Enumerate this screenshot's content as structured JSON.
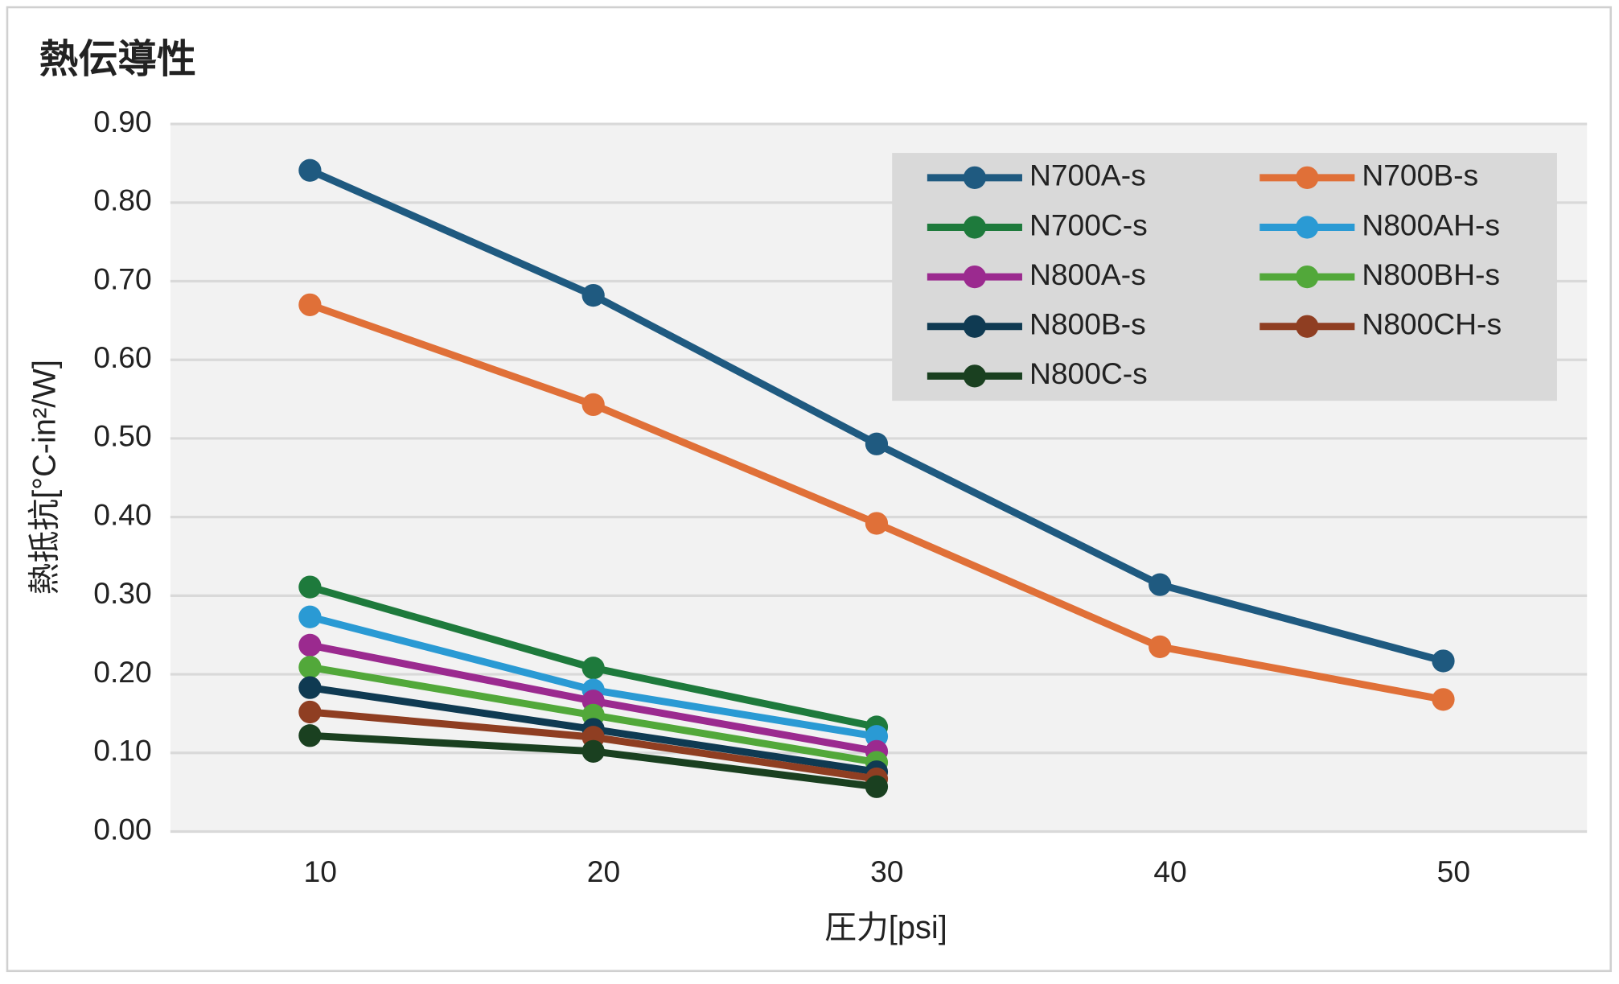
{
  "chart_data": {
    "type": "line",
    "title": "熱伝導性",
    "x_label": "圧力[psi]",
    "y_label": "熱抵抗[°C-in²/W]",
    "categories": [
      "10",
      "20",
      "30",
      "40",
      "50"
    ],
    "ylim": [
      0,
      0.9
    ],
    "yticks": [
      {
        "value": 0,
        "label": "0.00"
      },
      {
        "value": 0.1,
        "label": "0.10"
      },
      {
        "value": 0.2,
        "label": "0.20"
      },
      {
        "value": 0.3,
        "label": "0.30"
      },
      {
        "value": 0.4,
        "label": "0.40"
      },
      {
        "value": 0.5,
        "label": "0.50"
      },
      {
        "value": 0.6,
        "label": "0.60"
      },
      {
        "value": 0.7,
        "label": "0.70"
      },
      {
        "value": 0.8,
        "label": "0.80"
      },
      {
        "value": 0.9,
        "label": "0.90"
      }
    ],
    "grid": true,
    "legend": "upper right",
    "series": [
      {
        "name": "N700A-s",
        "color": "#1f5a80",
        "values": [
          0.841,
          0.682,
          0.493,
          0.314,
          0.217
        ]
      },
      {
        "name": "N700B-s",
        "color": "#e07038",
        "values": [
          0.67,
          0.543,
          0.392,
          0.235,
          0.168
        ]
      },
      {
        "name": "N700C-s",
        "color": "#1e7a3c",
        "values": [
          0.311,
          0.208,
          0.133,
          null,
          null
        ]
      },
      {
        "name": "N800AH-s",
        "color": "#2a9ad4",
        "values": [
          0.273,
          0.18,
          0.121,
          null,
          null
        ]
      },
      {
        "name": "N800A-s",
        "color": "#9b2a8f",
        "values": [
          0.237,
          0.166,
          0.102,
          null,
          null
        ]
      },
      {
        "name": "N800BH-s",
        "color": "#52a83a",
        "values": [
          0.209,
          0.148,
          0.088,
          null,
          null
        ]
      },
      {
        "name": "N800B-s",
        "color": "#0f3a52",
        "values": [
          0.183,
          0.13,
          0.076,
          null,
          null
        ]
      },
      {
        "name": "N800CH-s",
        "color": "#8f3e22",
        "values": [
          0.152,
          0.12,
          0.067,
          null,
          null
        ]
      },
      {
        "name": "N800C-s",
        "color": "#1a4020",
        "values": [
          0.122,
          0.102,
          0.057,
          null,
          null
        ]
      }
    ]
  }
}
